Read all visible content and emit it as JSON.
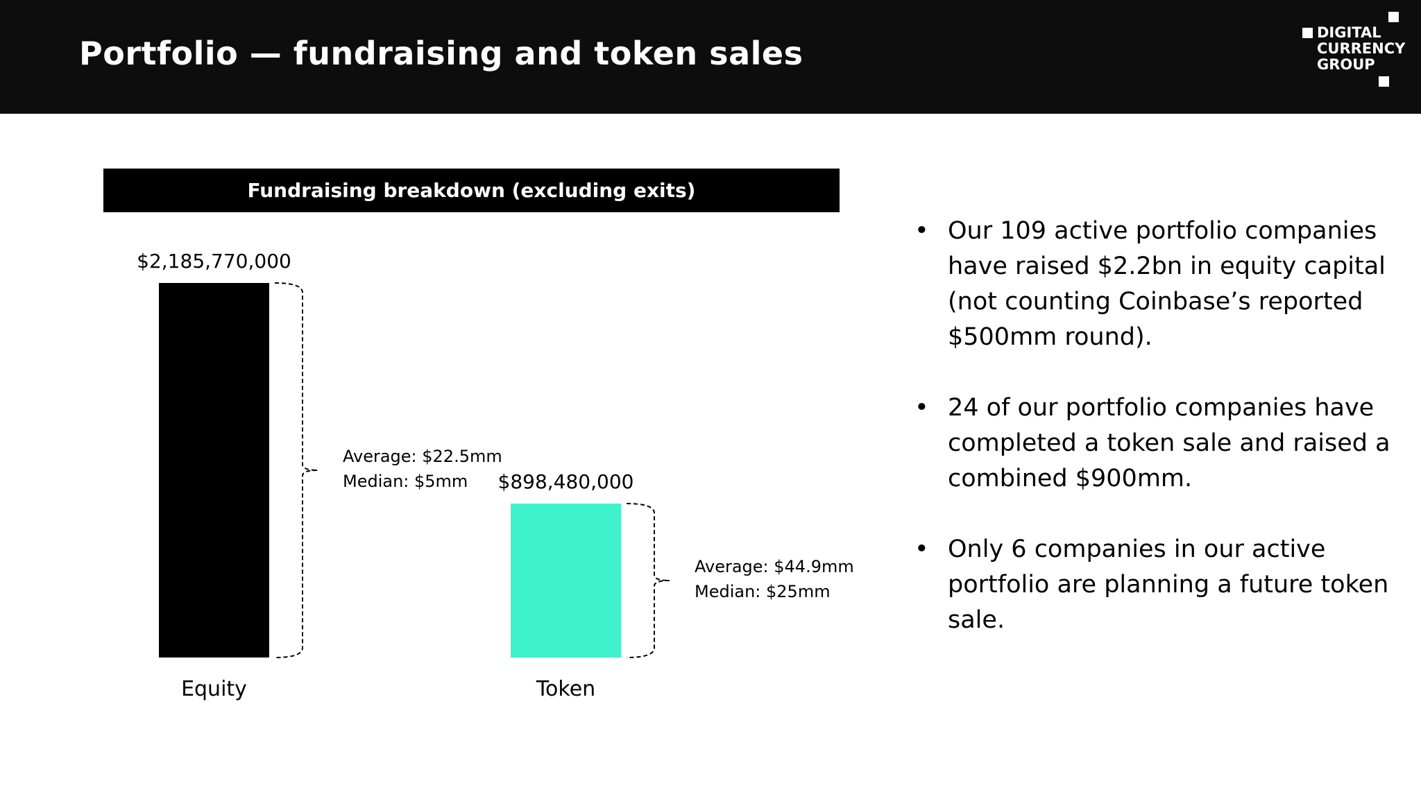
{
  "header": {
    "title": "Portfolio — fundraising and token sales",
    "logo_lines": [
      "DIGITAL",
      "CURRENCY",
      "GROUP"
    ]
  },
  "chart_data": {
    "type": "bar",
    "title": "Fundraising breakdown (excluding exits)",
    "categories": [
      "Equity",
      "Token"
    ],
    "values": [
      2185770000,
      898480000
    ],
    "value_labels": [
      "$2,185,770,000",
      "$898,480,000"
    ],
    "colors": [
      "#000000",
      "#3ef2cb"
    ],
    "annotations": [
      {
        "category": "Equity",
        "average": "Average: $22.5mm",
        "median": "Median: $5mm"
      },
      {
        "category": "Token",
        "average": "Average: $44.9mm",
        "median": "Median: $25mm"
      }
    ]
  },
  "bullets": [
    "Our 109 active portfolio companies have raised $2.2bn in equity capital (not counting Coinbase’s reported $500mm round).",
    "24 of our portfolio companies have completed a token sale and raised a combined $900mm.",
    "Only 6 companies in our active portfolio are planning a future token sale."
  ]
}
